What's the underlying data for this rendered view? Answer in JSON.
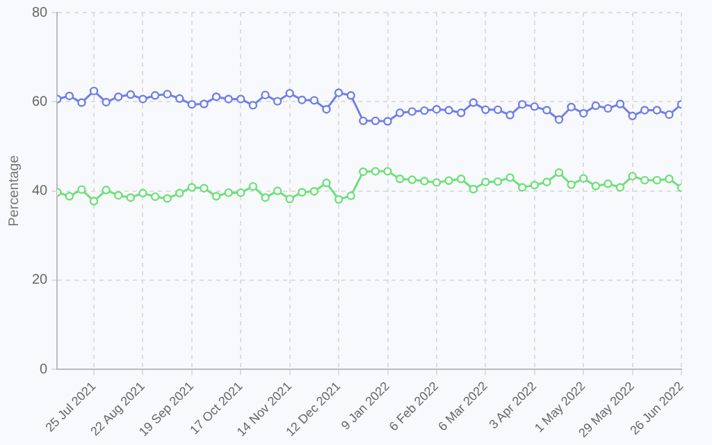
{
  "chart_data": {
    "type": "line",
    "ylabel": "Percentage",
    "x": [
      "2021-07-04",
      "2021-07-11",
      "2021-07-18",
      "2021-07-25",
      "2021-08-01",
      "2021-08-08",
      "2021-08-15",
      "2021-08-22",
      "2021-08-29",
      "2021-09-05",
      "2021-09-12",
      "2021-09-19",
      "2021-09-26",
      "2021-10-03",
      "2021-10-10",
      "2021-10-17",
      "2021-10-24",
      "2021-10-31",
      "2021-11-07",
      "2021-11-14",
      "2021-11-21",
      "2021-11-28",
      "2021-12-05",
      "2021-12-12",
      "2021-12-19",
      "2021-12-26",
      "2022-01-02",
      "2022-01-09",
      "2022-01-16",
      "2022-01-23",
      "2022-01-30",
      "2022-02-06",
      "2022-02-13",
      "2022-02-20",
      "2022-02-27",
      "2022-03-06",
      "2022-03-13",
      "2022-03-20",
      "2022-03-27",
      "2022-04-03",
      "2022-04-10",
      "2022-04-17",
      "2022-04-24",
      "2022-05-01",
      "2022-05-08",
      "2022-05-15",
      "2022-05-22",
      "2022-05-29",
      "2022-06-05",
      "2022-06-12",
      "2022-06-19",
      "2022-06-26"
    ],
    "series": [
      {
        "color": "#6f7fe6",
        "values": [
          60.6,
          61.3,
          59.8,
          62.4,
          59.9,
          61.1,
          61.6,
          60.6,
          61.4,
          61.7,
          60.7,
          59.4,
          59.5,
          61.1,
          60.6,
          60.6,
          59.2,
          61.5,
          60.1,
          61.9,
          60.4,
          60.3,
          58.3,
          62.0,
          61.4,
          55.7,
          55.7,
          55.6,
          57.5,
          57.8,
          58.0,
          58.3,
          58.1,
          57.5,
          59.8,
          58.2,
          58.2,
          57.0,
          59.4,
          58.9,
          58.1,
          56.0,
          58.8,
          57.4,
          59.1,
          58.5,
          59.5,
          56.8,
          58.1,
          58.1,
          57.1,
          59.4
        ]
      },
      {
        "color": "#6ee07a",
        "values": [
          39.7,
          38.8,
          40.3,
          37.7,
          40.2,
          39.0,
          38.5,
          39.5,
          38.7,
          38.3,
          39.5,
          40.8,
          40.6,
          38.8,
          39.6,
          39.6,
          41.0,
          38.5,
          40.0,
          38.2,
          39.7,
          39.9,
          41.8,
          38.1,
          38.9,
          44.3,
          44.4,
          44.4,
          42.7,
          42.5,
          42.2,
          41.9,
          42.3,
          42.7,
          40.4,
          42.0,
          42.1,
          43.0,
          40.8,
          41.3,
          42.0,
          44.1,
          41.4,
          42.8,
          41.1,
          41.6,
          40.8,
          43.3,
          42.4,
          42.4,
          42.7,
          40.7
        ]
      }
    ],
    "xlim": [
      "2021-07-04",
      "2022-06-26"
    ],
    "xticks": [
      {
        "value": "2021-07-25",
        "label": "25 Jul 2021"
      },
      {
        "value": "2021-08-22",
        "label": "22 Aug 2021"
      },
      {
        "value": "2021-09-19",
        "label": "19 Sep 2021"
      },
      {
        "value": "2021-10-17",
        "label": "17 Oct 2021"
      },
      {
        "value": "2021-11-14",
        "label": "14 Nov 2021"
      },
      {
        "value": "2021-12-12",
        "label": "12 Dec 2021"
      },
      {
        "value": "2022-01-09",
        "label": "9 Jan 2022"
      },
      {
        "value": "2022-02-06",
        "label": "6 Feb 2022"
      },
      {
        "value": "2022-03-06",
        "label": "6 Mar 2022"
      },
      {
        "value": "2022-04-03",
        "label": "3 Apr 2022"
      },
      {
        "value": "2022-05-01",
        "label": "1 May 2022"
      },
      {
        "value": "2022-05-29",
        "label": "29 May 2022"
      },
      {
        "value": "2022-06-26",
        "label": "26 Jun 2022"
      }
    ],
    "ylim": [
      0,
      80
    ],
    "yticks": [
      0,
      20,
      40,
      60,
      80
    ],
    "grid": true,
    "marker": "circle",
    "line_style": "solid"
  }
}
